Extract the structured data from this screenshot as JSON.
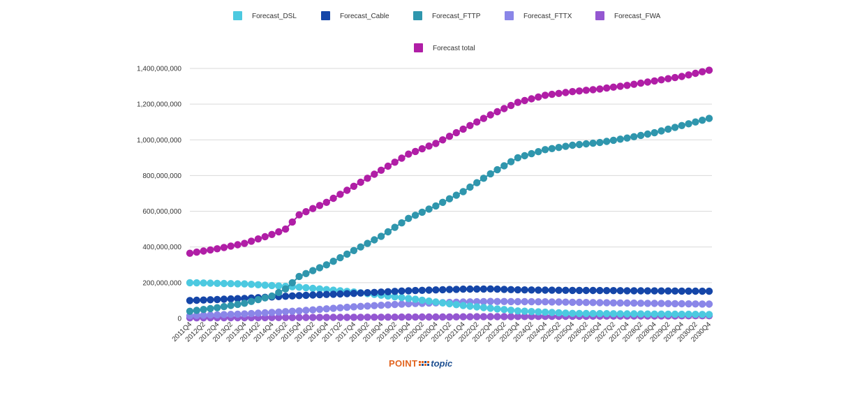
{
  "chart_data": {
    "type": "line",
    "title": "",
    "xlabel": "",
    "ylabel": "",
    "ylim": [
      0,
      1400000000
    ],
    "yticks": [
      0,
      200000000,
      400000000,
      600000000,
      800000000,
      1000000000,
      1200000000,
      1400000000
    ],
    "ytick_labels": [
      "0",
      "200,000,000",
      "400,000,000",
      "600,000,000",
      "800,000,000",
      "1,000,000,000",
      "1,200,000,000",
      "1,400,000,000"
    ],
    "grid": true,
    "legend_position": "top",
    "x": [
      "2011Q4",
      "2012Q1",
      "2012Q2",
      "2012Q3",
      "2012Q4",
      "2013Q1",
      "2013Q2",
      "2013Q3",
      "2013Q4",
      "2014Q1",
      "2014Q2",
      "2014Q3",
      "2014Q4",
      "2015Q1",
      "2015Q2",
      "2015Q3",
      "2015Q4",
      "2016Q1",
      "2016Q2",
      "2016Q3",
      "2016Q4",
      "2017Q1",
      "2017Q2",
      "2017Q3",
      "2017Q4",
      "2018Q1",
      "2018Q2",
      "2018Q3",
      "2018Q4",
      "2019Q1",
      "2019Q2",
      "2019Q3",
      "2019Q4",
      "2020Q1",
      "2020Q2",
      "2020Q3",
      "2020Q4",
      "2021Q1",
      "2021Q2",
      "2021Q3",
      "2021Q4",
      "2022Q1",
      "2022Q2",
      "2022Q3",
      "2022Q4",
      "2023Q1",
      "2023Q2",
      "2023Q3",
      "2023Q4",
      "2024Q1",
      "2024Q2",
      "2024Q3",
      "2024Q4",
      "2025Q1",
      "2025Q2",
      "2025Q3",
      "2025Q4",
      "2026Q1",
      "2026Q2",
      "2026Q3",
      "2026Q4",
      "2027Q1",
      "2027Q2",
      "2027Q3",
      "2027Q4",
      "2028Q1",
      "2028Q2",
      "2028Q3",
      "2028Q4",
      "2029Q1",
      "2029Q2",
      "2029Q3",
      "2029Q4",
      "2030Q1",
      "2030Q2",
      "2030Q3",
      "2030Q4"
    ],
    "x_tick_labels": [
      "2011Q4",
      "2012Q2",
      "2012Q4",
      "2013Q2",
      "2013Q4",
      "2014Q2",
      "2014Q4",
      "2015Q2",
      "2015Q4",
      "2016Q2",
      "2016Q4",
      "2017Q2",
      "2017Q4",
      "2018Q2",
      "2018Q4",
      "2019Q2",
      "2019Q4",
      "2020Q2",
      "2020Q4",
      "2021Q2",
      "2021Q4",
      "2022Q2",
      "2022Q4",
      "2023Q2",
      "2023Q4",
      "2024Q2",
      "2024Q4",
      "2025Q2",
      "2025Q4",
      "2026Q2",
      "2026Q4",
      "2027Q2",
      "2027Q4",
      "2028Q2",
      "2028Q4",
      "2029Q2",
      "2029Q4",
      "2030Q2",
      "2030Q4"
    ],
    "series": [
      {
        "name": "Forecast_DSL",
        "color": "#4cc9e0",
        "anchors": [
          [
            "2011Q4",
            200000000
          ],
          [
            "2013Q4",
            193000000
          ],
          [
            "2015Q4",
            175000000
          ],
          [
            "2017Q4",
            148000000
          ],
          [
            "2019Q4",
            112000000
          ],
          [
            "2021Q4",
            72000000
          ],
          [
            "2023Q4",
            42000000
          ],
          [
            "2025Q4",
            28000000
          ],
          [
            "2030Q4",
            22000000
          ]
        ]
      },
      {
        "name": "Forecast_Cable",
        "color": "#1546a8",
        "anchors": [
          [
            "2011Q4",
            100000000
          ],
          [
            "2013Q4",
            112000000
          ],
          [
            "2015Q4",
            128000000
          ],
          [
            "2017Q4",
            140000000
          ],
          [
            "2019Q4",
            155000000
          ],
          [
            "2021Q4",
            164000000
          ],
          [
            "2022Q4",
            165000000
          ],
          [
            "2023Q4",
            160000000
          ],
          [
            "2025Q4",
            157000000
          ],
          [
            "2030Q4",
            152000000
          ]
        ]
      },
      {
        "name": "Forecast_FTTP",
        "color": "#2f96ad",
        "anchors": [
          [
            "2011Q4",
            40000000
          ],
          [
            "2012Q4",
            60000000
          ],
          [
            "2013Q4",
            85000000
          ],
          [
            "2014Q4",
            125000000
          ],
          [
            "2015Q2",
            165000000
          ],
          [
            "2015Q4",
            235000000
          ],
          [
            "2016Q4",
            300000000
          ],
          [
            "2017Q4",
            380000000
          ],
          [
            "2018Q4",
            460000000
          ],
          [
            "2019Q4",
            560000000
          ],
          [
            "2020Q4",
            630000000
          ],
          [
            "2021Q4",
            710000000
          ],
          [
            "2022Q4",
            810000000
          ],
          [
            "2023Q4",
            900000000
          ],
          [
            "2024Q4",
            945000000
          ],
          [
            "2025Q4",
            970000000
          ],
          [
            "2026Q4",
            985000000
          ],
          [
            "2027Q4",
            1010000000
          ],
          [
            "2028Q4",
            1040000000
          ],
          [
            "2029Q4",
            1080000000
          ],
          [
            "2030Q4",
            1120000000
          ]
        ]
      },
      {
        "name": "Forecast_FTTX",
        "color": "#8a86e8",
        "anchors": [
          [
            "2011Q4",
            15000000
          ],
          [
            "2013Q4",
            25000000
          ],
          [
            "2015Q4",
            42000000
          ],
          [
            "2017Q4",
            65000000
          ],
          [
            "2019Q4",
            82000000
          ],
          [
            "2021Q4",
            92000000
          ],
          [
            "2022Q4",
            95000000
          ],
          [
            "2024Q4",
            93000000
          ],
          [
            "2026Q4",
            88000000
          ],
          [
            "2030Q4",
            80000000
          ]
        ]
      },
      {
        "name": "Forecast_FWA",
        "color": "#9457d1",
        "anchors": [
          [
            "2011Q4",
            3000000
          ],
          [
            "2015Q4",
            5000000
          ],
          [
            "2020Q4",
            8000000
          ],
          [
            "2025Q4",
            12000000
          ],
          [
            "2030Q4",
            15000000
          ]
        ]
      },
      {
        "name": "Forecast total",
        "color": "#b01ea6",
        "anchors": [
          [
            "2011Q4",
            365000000
          ],
          [
            "2012Q4",
            390000000
          ],
          [
            "2013Q4",
            420000000
          ],
          [
            "2014Q4",
            470000000
          ],
          [
            "2015Q2",
            500000000
          ],
          [
            "2015Q4",
            580000000
          ],
          [
            "2016Q4",
            650000000
          ],
          [
            "2017Q4",
            740000000
          ],
          [
            "2018Q4",
            830000000
          ],
          [
            "2019Q4",
            920000000
          ],
          [
            "2020Q4",
            980000000
          ],
          [
            "2021Q4",
            1060000000
          ],
          [
            "2022Q4",
            1140000000
          ],
          [
            "2023Q4",
            1210000000
          ],
          [
            "2024Q4",
            1250000000
          ],
          [
            "2025Q4",
            1270000000
          ],
          [
            "2026Q4",
            1285000000
          ],
          [
            "2027Q4",
            1305000000
          ],
          [
            "2028Q4",
            1330000000
          ],
          [
            "2029Q4",
            1355000000
          ],
          [
            "2030Q4",
            1390000000
          ]
        ]
      }
    ]
  },
  "logo": {
    "point": "POINT",
    "topic": "topic"
  },
  "colors": {
    "grid": "#d9d9d9",
    "axis": "#bfbfbf",
    "logo_orange": "#e2641f",
    "logo_blue": "#1d4f91"
  }
}
